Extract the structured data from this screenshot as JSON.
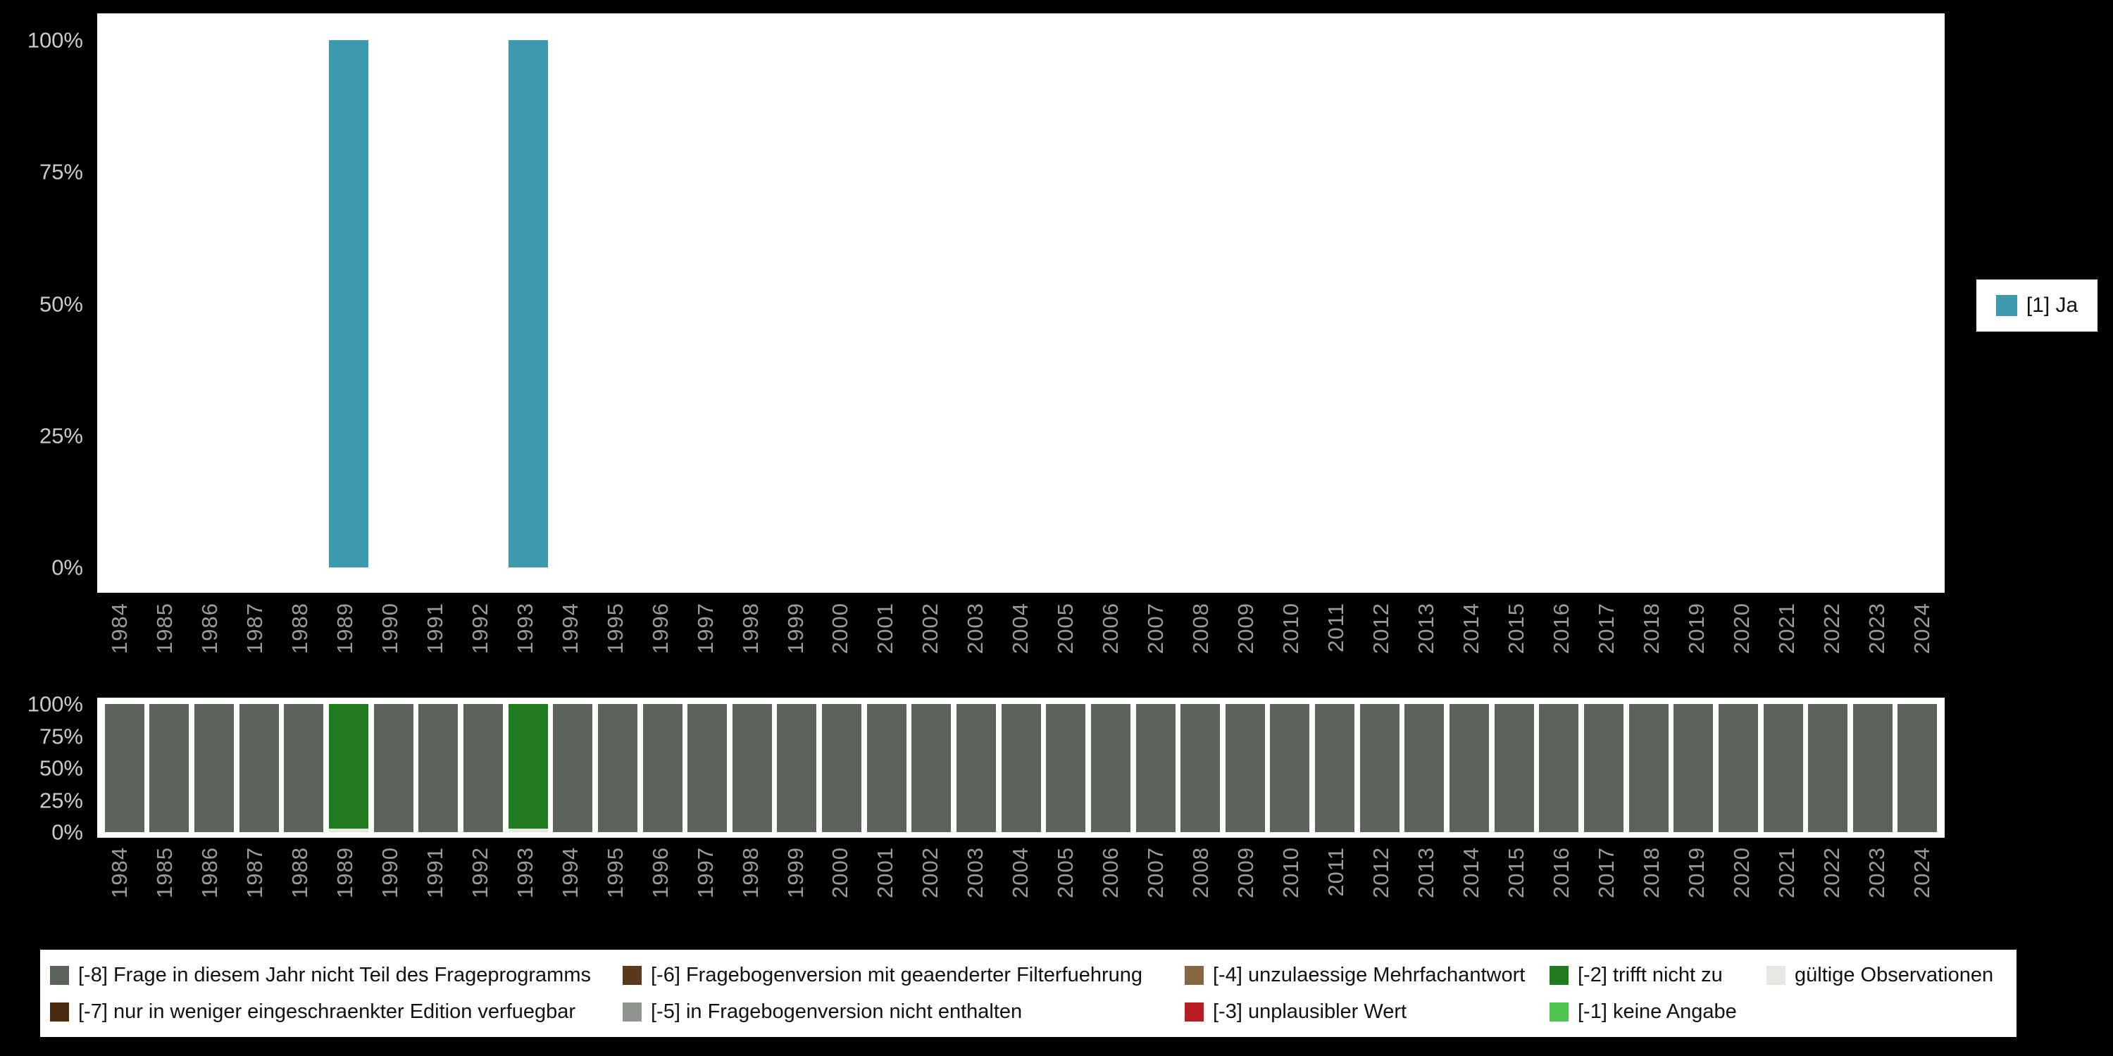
{
  "page": {
    "background": "#000000",
    "plot_background": "#ffffff"
  },
  "axis_style": {
    "y_tick_color": "#cbcbcb",
    "x_tick_color": "#9b9b9b"
  },
  "top_legend": {
    "label": "[1] Ja",
    "color": "#3d99b0"
  },
  "chart_data": [
    {
      "type": "bar",
      "title": "",
      "xlabel": "",
      "ylabel": "",
      "ylim": [
        0,
        100
      ],
      "grid": false,
      "legend_position": "right",
      "y_ticks": [
        "0%",
        "25%",
        "50%",
        "75%",
        "100%"
      ],
      "categories": [
        1984,
        1985,
        1986,
        1987,
        1988,
        1989,
        1990,
        1991,
        1992,
        1993,
        1994,
        1995,
        1996,
        1997,
        1998,
        1999,
        2000,
        2001,
        2002,
        2003,
        2004,
        2005,
        2006,
        2007,
        2008,
        2009,
        2010,
        2011,
        2012,
        2013,
        2014,
        2015,
        2016,
        2017,
        2018,
        2019,
        2020,
        2021,
        2022,
        2023,
        2024
      ],
      "series": [
        {
          "name": "[1] Ja",
          "color": "#3d99b0",
          "values": [
            0,
            0,
            0,
            0,
            0,
            100,
            0,
            0,
            0,
            100,
            0,
            0,
            0,
            0,
            0,
            0,
            0,
            0,
            0,
            0,
            0,
            0,
            0,
            0,
            0,
            0,
            0,
            0,
            0,
            0,
            0,
            0,
            0,
            0,
            0,
            0,
            0,
            0,
            0,
            0,
            0
          ]
        }
      ]
    },
    {
      "type": "bar",
      "stacked": true,
      "title": "",
      "xlabel": "",
      "ylabel": "",
      "ylim": [
        0,
        100
      ],
      "grid": false,
      "legend_position": "bottom",
      "y_ticks": [
        "0%",
        "25%",
        "50%",
        "75%",
        "100%"
      ],
      "categories": [
        1984,
        1985,
        1986,
        1987,
        1988,
        1989,
        1990,
        1991,
        1992,
        1993,
        1994,
        1995,
        1996,
        1997,
        1998,
        1999,
        2000,
        2001,
        2002,
        2003,
        2004,
        2005,
        2006,
        2007,
        2008,
        2009,
        2010,
        2011,
        2012,
        2013,
        2014,
        2015,
        2016,
        2017,
        2018,
        2019,
        2020,
        2021,
        2022,
        2023,
        2024
      ],
      "series": [
        {
          "name": "gültige Observationen",
          "color": "#e8e8e2",
          "values": [
            0,
            0,
            0,
            0,
            0,
            3,
            0,
            0,
            0,
            3,
            0,
            0,
            0,
            0,
            0,
            0,
            0,
            0,
            0,
            0,
            0,
            0,
            0,
            0,
            0,
            0,
            0,
            0,
            0,
            0,
            0,
            0,
            0,
            0,
            0,
            0,
            0,
            0,
            0,
            0,
            0
          ]
        },
        {
          "name": "[-2] trifft nicht zu",
          "color": "#207a20",
          "values": [
            0,
            0,
            0,
            0,
            0,
            97,
            0,
            0,
            0,
            97,
            0,
            0,
            0,
            0,
            0,
            0,
            0,
            0,
            0,
            0,
            0,
            0,
            0,
            0,
            0,
            0,
            0,
            0,
            0,
            0,
            0,
            0,
            0,
            0,
            0,
            0,
            0,
            0,
            0,
            0,
            0
          ]
        },
        {
          "name": "[-8] Frage in diesem Jahr nicht Teil des Frageprogramms",
          "color": "#5a625a",
          "values": [
            100,
            100,
            100,
            100,
            100,
            0,
            100,
            100,
            100,
            0,
            100,
            100,
            100,
            100,
            100,
            100,
            100,
            100,
            100,
            100,
            100,
            100,
            100,
            100,
            100,
            100,
            100,
            100,
            100,
            100,
            100,
            100,
            100,
            100,
            100,
            100,
            100,
            100,
            100,
            100,
            100
          ]
        }
      ]
    }
  ],
  "bottom_legend": {
    "items": [
      {
        "label": "[-8] Frage in diesem Jahr nicht Teil des Frageprogramms",
        "color": "#5a625a"
      },
      {
        "label": "[-7] nur in weniger eingeschraenkter Edition verfuegbar",
        "color": "#4a2a10"
      },
      {
        "label": "[-6] Fragebogenversion mit geaenderter Filterfuehrung",
        "color": "#5a3a1a"
      },
      {
        "label": "[-5] in Fragebogenversion nicht enthalten",
        "color": "#8f948e"
      },
      {
        "label": "[-4] unzulaessige Mehrfachantwort",
        "color": "#856740"
      },
      {
        "label": "[-3] unplausibler Wert",
        "color": "#b91c22"
      },
      {
        "label": "[-2] trifft nicht zu",
        "color": "#207a20"
      },
      {
        "label": "[-1] keine Angabe",
        "color": "#4dc44d"
      },
      {
        "label": "gültige Observationen",
        "color": "#e8e8e2"
      }
    ]
  }
}
